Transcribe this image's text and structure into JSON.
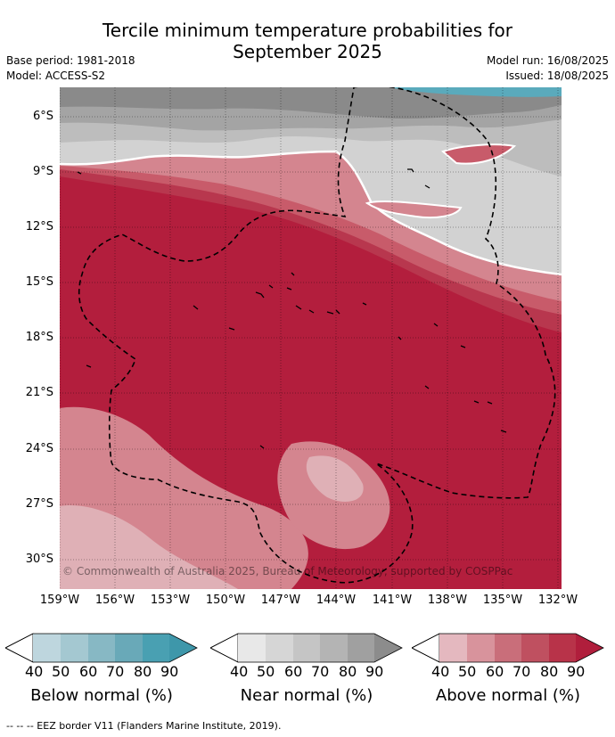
{
  "header": {
    "title_line1": "Tercile minimum temperature probabilities for",
    "title_line2": "September 2025",
    "base_period": "Base period: 1981-2018",
    "model": "Model: ACCESS-S2",
    "model_run": "Model run: 16/08/2025",
    "issued": "Issued: 18/08/2025"
  },
  "map": {
    "lat_labels": [
      "6°S",
      "9°S",
      "12°S",
      "15°S",
      "18°S",
      "21°S",
      "24°S",
      "27°S",
      "30°S"
    ],
    "lon_labels": [
      "159°W",
      "156°W",
      "153°W",
      "150°W",
      "147°W",
      "144°W",
      "141°W",
      "138°W",
      "135°W",
      "132°W"
    ],
    "copyright": "© Commonwealth of Australia 2025, Bureau of Meteorology, supported by COSPPac",
    "colors": {
      "above_90": "#b31e3d",
      "above_80": "#b8374e",
      "above_70": "#c85b6a",
      "above_60": "#d4858f",
      "above_50": "#dfb0b6",
      "near_40": "#d2d2d2",
      "near_50": "#bdbdbd",
      "near_60": "#a4a4a4",
      "near_70": "#8a8a8a",
      "below_60": "#5aaabc"
    }
  },
  "legends": [
    {
      "title": "Below normal (%)",
      "ticks": [
        "40",
        "50",
        "60",
        "70",
        "80",
        "90"
      ],
      "colors": [
        "#bed6de",
        "#a4c8d1",
        "#87b8c4",
        "#69a9b8",
        "#49a0b2"
      ]
    },
    {
      "title": "Near normal (%)",
      "ticks": [
        "40",
        "50",
        "60",
        "70",
        "80",
        "90"
      ],
      "colors": [
        "#e8e8e8",
        "#d6d6d6",
        "#c5c5c5",
        "#b4b4b4",
        "#a0a0a0"
      ]
    },
    {
      "title": "Above normal (%)",
      "ticks": [
        "40",
        "50",
        "60",
        "70",
        "80",
        "90"
      ],
      "colors": [
        "#e4b8bf",
        "#d8939c",
        "#c96e7a",
        "#bf5060",
        "#b83349"
      ]
    }
  ],
  "footer": "--  --  -- EEZ border V11 (Flanders Marine Institute, 2019)."
}
